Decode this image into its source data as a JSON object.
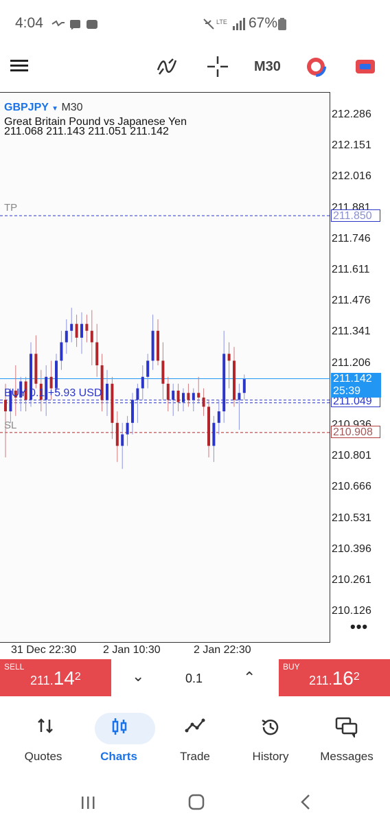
{
  "status": {
    "time": "4:04",
    "battery": "67%"
  },
  "toolbar": {
    "timeframe": "M30"
  },
  "chart_header": {
    "symbol": "GBPJPY",
    "timeframe": "M30",
    "description": "Great Britain Pound vs Japanese Yen",
    "ohlc": "211.068 211.143 211.051 211.142"
  },
  "price_axis": [
    "212.286",
    "212.151",
    "212.016",
    "211.881",
    "211.746",
    "211.611",
    "211.476",
    "211.341",
    "211.206",
    "211.071",
    "210.936",
    "210.801",
    "210.666",
    "210.531",
    "210.396",
    "210.261",
    "210.126"
  ],
  "lines": {
    "tp_label": "TP",
    "tp_value": "211.850",
    "sl_label": "SL",
    "sl_value": "210.908",
    "position_label": "BUY 0.1   +5.93 USD",
    "entry_value": "211.049",
    "current_price": "211.142",
    "countdown": "25:39"
  },
  "time_axis": [
    "31 Dec 22:30",
    "2 Jan 10:30",
    "2 Jan 22:30"
  ],
  "trade": {
    "sell_label": "SELL",
    "sell_price_main": "211.",
    "sell_price_big": "14",
    "sell_price_sup": "2",
    "buy_label": "BUY",
    "buy_price_main": "211.",
    "buy_price_big": "16",
    "buy_price_sup": "2",
    "volume": "0.1"
  },
  "nav": [
    {
      "label": "Quotes",
      "icon": "quotes-icon"
    },
    {
      "label": "Charts",
      "icon": "charts-icon"
    },
    {
      "label": "Trade",
      "icon": "trade-icon"
    },
    {
      "label": "History",
      "icon": "history-icon"
    },
    {
      "label": "Messages",
      "icon": "messages-icon"
    }
  ],
  "colors": {
    "bull": "#2b36c9",
    "bear": "#b2262b",
    "accent": "#1a73e8",
    "trade": "#e5484d"
  },
  "chart_data": {
    "type": "candlestick",
    "symbol": "GBPJPY",
    "timeframe": "M30",
    "ylim": [
      210.07,
      212.36
    ],
    "x_ticks": [
      "31 Dec 22:30",
      "2 Jan 10:30",
      "2 Jan 22:30"
    ],
    "levels": {
      "tp": 211.85,
      "sl": 210.908,
      "entry": 211.049,
      "bid": 211.142
    },
    "candles": [
      {
        "o": 211.05,
        "h": 211.12,
        "l": 210.8,
        "c": 211.0
      },
      {
        "o": 211.0,
        "h": 211.1,
        "l": 210.95,
        "c": 211.09
      },
      {
        "o": 211.09,
        "h": 211.2,
        "l": 210.98,
        "c": 211.06
      },
      {
        "o": 211.06,
        "h": 211.15,
        "l": 211.0,
        "c": 211.13
      },
      {
        "o": 211.13,
        "h": 211.15,
        "l": 211.0,
        "c": 211.05
      },
      {
        "o": 211.05,
        "h": 211.3,
        "l": 211.02,
        "c": 211.25
      },
      {
        "o": 211.25,
        "h": 211.33,
        "l": 211.1,
        "c": 211.12
      },
      {
        "o": 211.12,
        "h": 211.18,
        "l": 211.0,
        "c": 211.05
      },
      {
        "o": 211.05,
        "h": 211.2,
        "l": 210.98,
        "c": 211.15
      },
      {
        "o": 211.15,
        "h": 211.22,
        "l": 211.05,
        "c": 211.1
      },
      {
        "o": 211.1,
        "h": 211.25,
        "l": 211.08,
        "c": 211.22
      },
      {
        "o": 211.22,
        "h": 211.35,
        "l": 211.18,
        "c": 211.3
      },
      {
        "o": 211.3,
        "h": 211.4,
        "l": 211.25,
        "c": 211.35
      },
      {
        "o": 211.35,
        "h": 211.45,
        "l": 211.3,
        "c": 211.38
      },
      {
        "o": 211.38,
        "h": 211.42,
        "l": 211.28,
        "c": 211.32
      },
      {
        "o": 211.32,
        "h": 211.43,
        "l": 211.25,
        "c": 211.38
      },
      {
        "o": 211.38,
        "h": 211.42,
        "l": 211.3,
        "c": 211.35
      },
      {
        "o": 211.35,
        "h": 211.44,
        "l": 211.2,
        "c": 211.3
      },
      {
        "o": 211.3,
        "h": 211.38,
        "l": 211.15,
        "c": 211.2
      },
      {
        "o": 211.2,
        "h": 211.25,
        "l": 211.0,
        "c": 211.05
      },
      {
        "o": 211.05,
        "h": 211.18,
        "l": 210.98,
        "c": 211.12
      },
      {
        "o": 211.12,
        "h": 211.15,
        "l": 210.88,
        "c": 210.95
      },
      {
        "o": 210.95,
        "h": 211.0,
        "l": 210.78,
        "c": 210.85
      },
      {
        "o": 210.85,
        "h": 210.95,
        "l": 210.75,
        "c": 210.9
      },
      {
        "o": 210.9,
        "h": 210.98,
        "l": 210.85,
        "c": 210.95
      },
      {
        "o": 210.95,
        "h": 211.08,
        "l": 210.9,
        "c": 211.05
      },
      {
        "o": 211.05,
        "h": 211.12,
        "l": 210.95,
        "c": 211.1
      },
      {
        "o": 211.1,
        "h": 211.2,
        "l": 211.05,
        "c": 211.15
      },
      {
        "o": 211.15,
        "h": 211.25,
        "l": 211.1,
        "c": 211.22
      },
      {
        "o": 211.22,
        "h": 211.42,
        "l": 211.18,
        "c": 211.35
      },
      {
        "o": 211.35,
        "h": 211.4,
        "l": 211.2,
        "c": 211.22
      },
      {
        "o": 211.22,
        "h": 211.3,
        "l": 211.05,
        "c": 211.12
      },
      {
        "o": 211.12,
        "h": 211.15,
        "l": 211.0,
        "c": 211.05
      },
      {
        "o": 211.05,
        "h": 211.12,
        "l": 210.98,
        "c": 211.09
      },
      {
        "o": 211.09,
        "h": 211.12,
        "l": 211.0,
        "c": 211.04
      },
      {
        "o": 211.04,
        "h": 211.1,
        "l": 211.0,
        "c": 211.08
      },
      {
        "o": 211.08,
        "h": 211.12,
        "l": 211.02,
        "c": 211.05
      },
      {
        "o": 211.05,
        "h": 211.1,
        "l": 211.0,
        "c": 211.08
      },
      {
        "o": 211.08,
        "h": 211.15,
        "l": 211.04,
        "c": 211.06
      },
      {
        "o": 211.06,
        "h": 211.1,
        "l": 210.98,
        "c": 211.02
      },
      {
        "o": 211.02,
        "h": 211.05,
        "l": 210.8,
        "c": 210.85
      },
      {
        "o": 210.85,
        "h": 210.98,
        "l": 210.78,
        "c": 210.95
      },
      {
        "o": 210.95,
        "h": 211.05,
        "l": 210.9,
        "c": 211.0
      },
      {
        "o": 211.0,
        "h": 211.35,
        "l": 210.95,
        "c": 211.25
      },
      {
        "o": 211.25,
        "h": 211.3,
        "l": 211.1,
        "c": 211.22
      },
      {
        "o": 211.22,
        "h": 211.28,
        "l": 211.02,
        "c": 211.05
      },
      {
        "o": 211.05,
        "h": 211.12,
        "l": 210.92,
        "c": 211.08
      },
      {
        "o": 211.08,
        "h": 211.16,
        "l": 211.05,
        "c": 211.14
      }
    ]
  }
}
